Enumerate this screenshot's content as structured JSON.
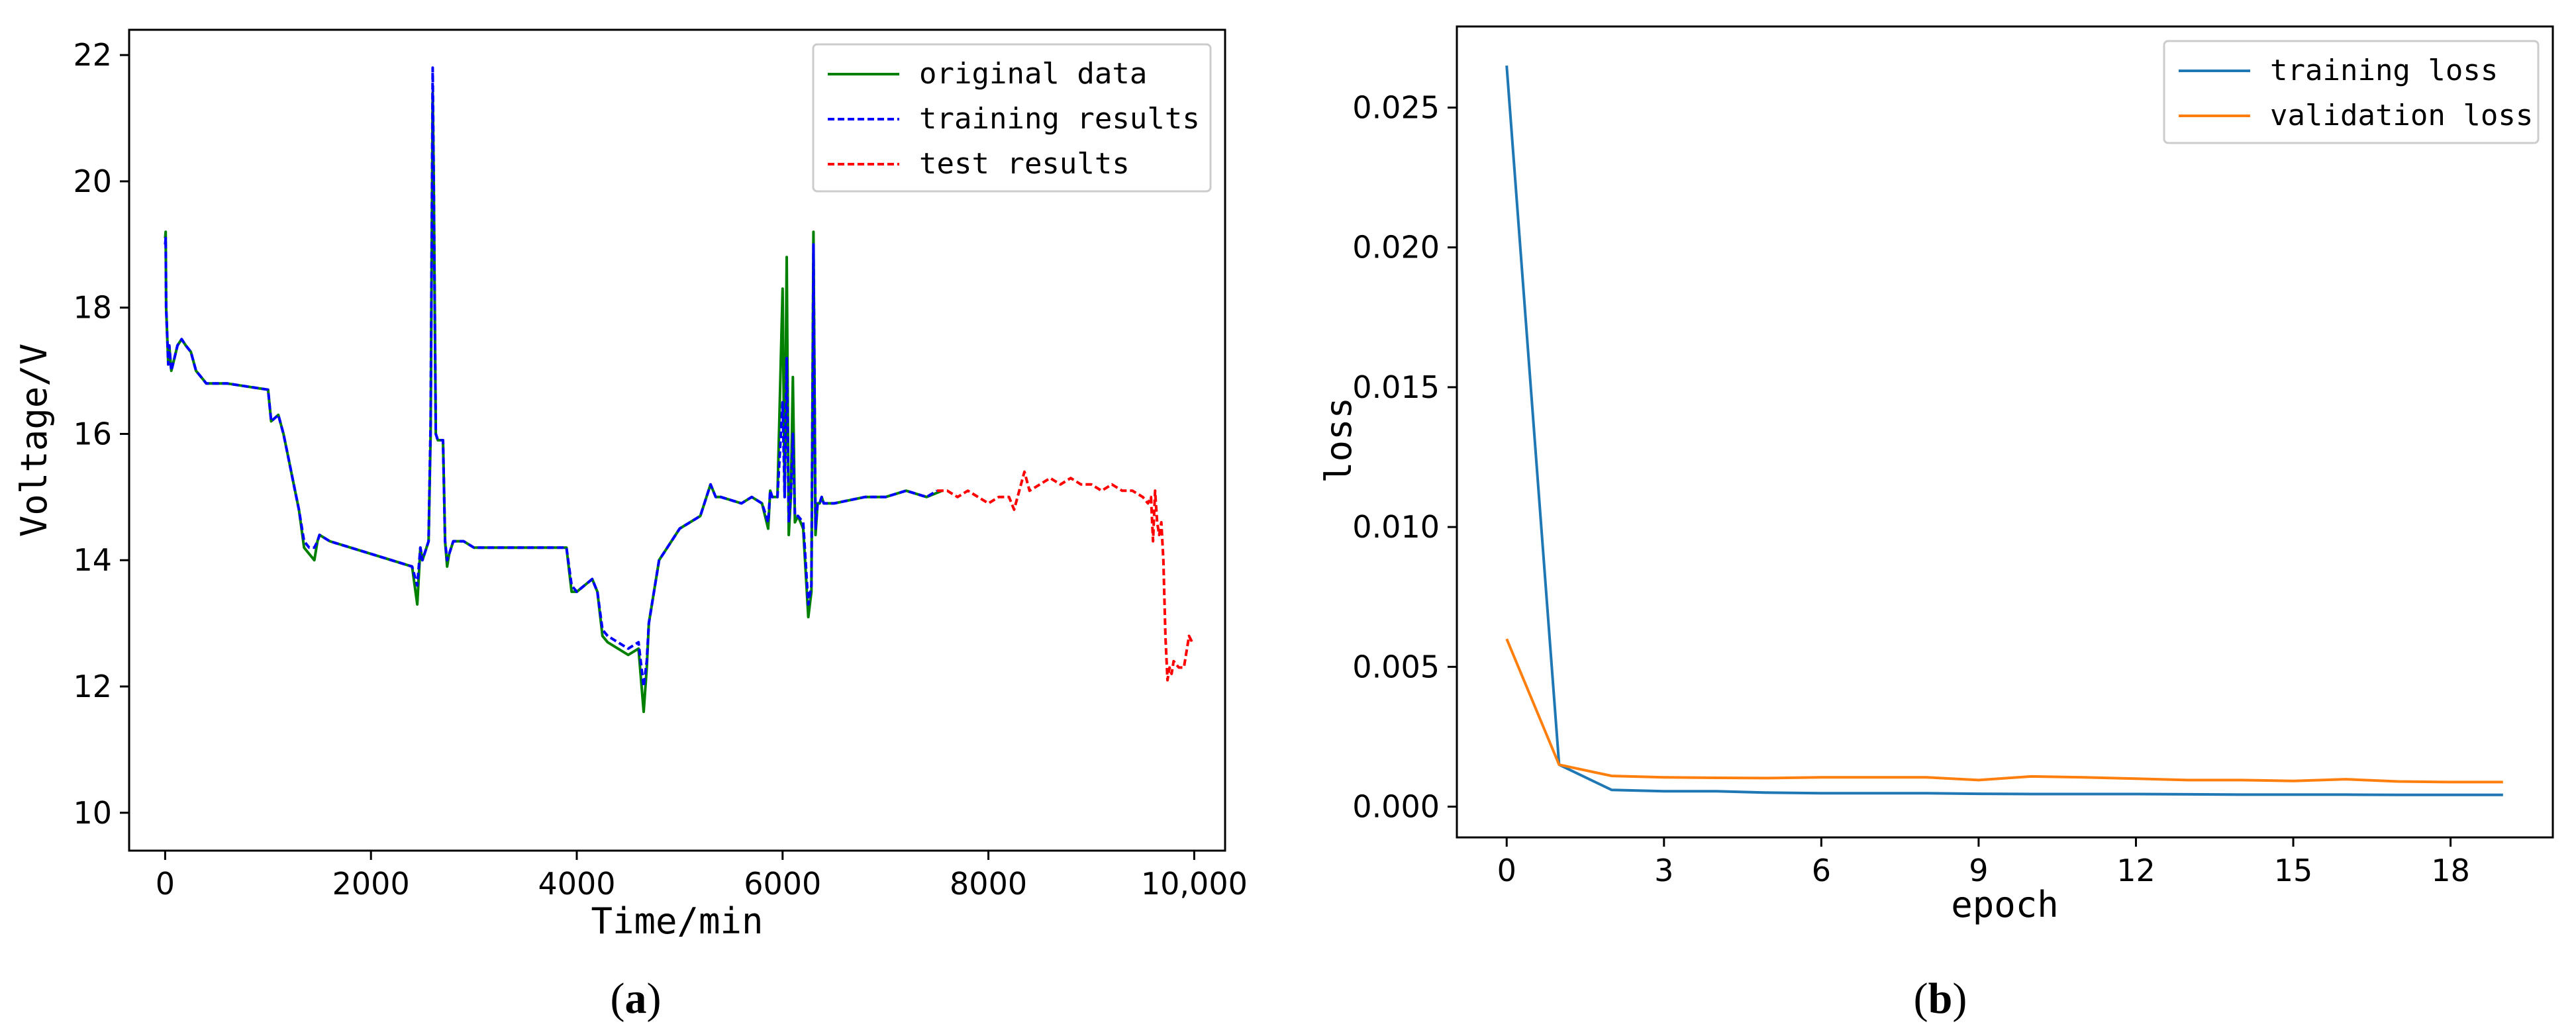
{
  "chart_data": [
    {
      "type": "line",
      "caption_letter": "a",
      "xlabel": "Time/min",
      "ylabel": "Voltage/V",
      "xlim": [
        -350,
        10300
      ],
      "ylim": [
        9.4,
        22.4
      ],
      "xticks": [
        0,
        2000,
        4000,
        6000,
        8000,
        10000
      ],
      "xtick_labels": [
        "0",
        "2000",
        "4000",
        "6000",
        "8000",
        "10,000"
      ],
      "yticks": [
        10,
        12,
        14,
        16,
        18,
        20,
        22
      ],
      "ytick_labels": [
        "10",
        "12",
        "14",
        "16",
        "18",
        "20",
        "22"
      ],
      "legend_position": "top-right",
      "series": [
        {
          "name": "original data",
          "color": "#008000",
          "style": "solid",
          "x": [
            0,
            5,
            10,
            30,
            40,
            60,
            90,
            120,
            160,
            200,
            250,
            300,
            350,
            400,
            600,
            1000,
            1030,
            1100,
            1150,
            1200,
            1250,
            1300,
            1350,
            1400,
            1450,
            1480,
            1500,
            1600,
            2000,
            2400,
            2450,
            2480,
            2500,
            2560,
            2580,
            2600,
            2610,
            2630,
            2650,
            2700,
            2720,
            2740,
            2760,
            2780,
            2800,
            2900,
            3000,
            3500,
            3900,
            3950,
            4000,
            4150,
            4200,
            4250,
            4300,
            4500,
            4600,
            4650,
            4680,
            4700,
            4800,
            5000,
            5200,
            5300,
            5350,
            5400,
            5600,
            5700,
            5800,
            5860,
            5880,
            5900,
            5950,
            6000,
            6020,
            6040,
            6060,
            6080,
            6100,
            6120,
            6150,
            6200,
            6250,
            6280,
            6300,
            6320,
            6340,
            6360,
            6380,
            6400,
            6500,
            6800,
            7000,
            7200,
            7400,
            7550
          ],
          "y": [
            19.1,
            19.2,
            18.0,
            17.1,
            17.4,
            17.0,
            17.2,
            17.4,
            17.5,
            17.4,
            17.3,
            17.0,
            16.9,
            16.8,
            16.8,
            16.7,
            16.2,
            16.3,
            16.0,
            15.6,
            15.2,
            14.8,
            14.2,
            14.1,
            14.0,
            14.3,
            14.4,
            14.3,
            14.1,
            13.9,
            13.3,
            14.2,
            14.0,
            14.3,
            16.0,
            21.4,
            20.0,
            16.0,
            15.9,
            15.9,
            14.3,
            13.9,
            14.1,
            14.2,
            14.3,
            14.3,
            14.2,
            14.2,
            14.2,
            13.5,
            13.5,
            13.7,
            13.5,
            12.8,
            12.7,
            12.5,
            12.6,
            11.6,
            12.3,
            13.0,
            14.0,
            14.5,
            14.7,
            15.2,
            15.0,
            15.0,
            14.9,
            15.0,
            14.9,
            14.5,
            15.1,
            15.0,
            15.0,
            18.3,
            15.0,
            18.8,
            14.4,
            15.0,
            16.9,
            14.6,
            14.7,
            14.5,
            13.1,
            13.5,
            19.2,
            14.4,
            14.9,
            14.9,
            15.0,
            14.9,
            14.9,
            15.0,
            15.0,
            15.1,
            15.0,
            15.1
          ]
        },
        {
          "name": "training results",
          "color": "#0000ff",
          "style": "dashed",
          "x": [
            0,
            5,
            10,
            30,
            40,
            60,
            90,
            120,
            160,
            200,
            250,
            300,
            350,
            400,
            600,
            1000,
            1030,
            1100,
            1150,
            1200,
            1250,
            1300,
            1350,
            1400,
            1450,
            1480,
            1500,
            1600,
            2000,
            2400,
            2450,
            2480,
            2500,
            2560,
            2580,
            2600,
            2610,
            2630,
            2650,
            2700,
            2720,
            2740,
            2760,
            2780,
            2800,
            2900,
            3000,
            3500,
            3900,
            3950,
            4000,
            4150,
            4200,
            4250,
            4300,
            4500,
            4600,
            4650,
            4680,
            4700,
            4800,
            5000,
            5200,
            5300,
            5350,
            5400,
            5600,
            5700,
            5800,
            5860,
            5880,
            5900,
            5950,
            6000,
            6020,
            6040,
            6060,
            6080,
            6100,
            6120,
            6150,
            6200,
            6250,
            6280,
            6300,
            6320,
            6340,
            6360,
            6380,
            6400,
            6500,
            6800,
            7000,
            7200,
            7400,
            7500
          ],
          "y": [
            19.0,
            19.1,
            18.0,
            17.1,
            17.4,
            17.0,
            17.2,
            17.4,
            17.5,
            17.4,
            17.3,
            17.0,
            16.9,
            16.8,
            16.8,
            16.7,
            16.2,
            16.3,
            16.0,
            15.6,
            15.2,
            14.8,
            14.3,
            14.2,
            14.2,
            14.3,
            14.4,
            14.3,
            14.1,
            13.9,
            13.6,
            14.2,
            14.0,
            14.3,
            16.2,
            21.8,
            20.0,
            16.0,
            15.9,
            15.9,
            14.3,
            14.0,
            14.1,
            14.2,
            14.3,
            14.3,
            14.2,
            14.2,
            14.2,
            13.6,
            13.5,
            13.7,
            13.5,
            12.9,
            12.8,
            12.6,
            12.7,
            12.0,
            12.4,
            13.0,
            14.0,
            14.5,
            14.7,
            15.2,
            15.0,
            15.0,
            14.9,
            15.0,
            14.9,
            14.6,
            15.1,
            15.0,
            15.0,
            16.5,
            15.0,
            17.2,
            14.6,
            15.0,
            16.0,
            14.7,
            14.7,
            14.6,
            13.3,
            13.6,
            19.0,
            14.5,
            14.9,
            14.9,
            15.0,
            14.9,
            14.9,
            15.0,
            15.0,
            15.1,
            15.0,
            15.1
          ]
        },
        {
          "name": "test results",
          "color": "#ff0000",
          "style": "dashed",
          "x": [
            7500,
            7600,
            7700,
            7800,
            7900,
            8000,
            8100,
            8200,
            8250,
            8300,
            8350,
            8400,
            8500,
            8600,
            8700,
            8800,
            8900,
            9000,
            9100,
            9200,
            9300,
            9400,
            9500,
            9550,
            9580,
            9600,
            9620,
            9640,
            9660,
            9680,
            9700,
            9720,
            9740,
            9760,
            9780,
            9800,
            9850,
            9900,
            9950,
            9980
          ],
          "y": [
            15.1,
            15.1,
            15.0,
            15.1,
            15.0,
            14.9,
            15.0,
            15.0,
            14.8,
            15.1,
            15.4,
            15.1,
            15.2,
            15.3,
            15.2,
            15.3,
            15.2,
            15.2,
            15.1,
            15.2,
            15.1,
            15.1,
            15.0,
            14.9,
            15.0,
            14.3,
            15.1,
            14.6,
            14.4,
            14.6,
            14.0,
            12.8,
            12.1,
            12.3,
            12.2,
            12.4,
            12.3,
            12.3,
            12.8,
            12.7
          ]
        }
      ]
    },
    {
      "type": "line",
      "caption_letter": "b",
      "xlabel": "epoch",
      "ylabel": "loss",
      "xlim": [
        -0.95,
        19.95
      ],
      "ylim": [
        -0.0011,
        0.0279
      ],
      "xticks": [
        0,
        3,
        6,
        9,
        12,
        15,
        18
      ],
      "xtick_labels": [
        "0",
        "3",
        "6",
        "9",
        "12",
        "15",
        "18"
      ],
      "yticks": [
        0.0,
        0.005,
        0.01,
        0.015,
        0.02,
        0.025
      ],
      "ytick_labels": [
        "0.000",
        "0.005",
        "0.010",
        "0.015",
        "0.020",
        "0.025"
      ],
      "legend_position": "top-right",
      "series": [
        {
          "name": "training loss",
          "color": "#1f77b4",
          "style": "solid",
          "x": [
            0,
            1,
            2,
            3,
            4,
            5,
            6,
            7,
            8,
            9,
            10,
            11,
            12,
            13,
            14,
            15,
            16,
            17,
            18,
            19
          ],
          "y": [
            0.0265,
            0.0015,
            0.0006,
            0.00055,
            0.00055,
            0.0005,
            0.00048,
            0.00048,
            0.00048,
            0.00046,
            0.00045,
            0.00045,
            0.00045,
            0.00044,
            0.00043,
            0.00043,
            0.00043,
            0.00042,
            0.00042,
            0.00042
          ]
        },
        {
          "name": "validation loss",
          "color": "#ff7f0e",
          "style": "solid",
          "x": [
            0,
            1,
            2,
            3,
            4,
            5,
            6,
            7,
            8,
            9,
            10,
            11,
            12,
            13,
            14,
            15,
            16,
            17,
            18,
            19
          ],
          "y": [
            0.006,
            0.0015,
            0.0011,
            0.00105,
            0.00103,
            0.00102,
            0.00105,
            0.00105,
            0.00105,
            0.00095,
            0.00108,
            0.00105,
            0.001,
            0.00095,
            0.00095,
            0.00092,
            0.00098,
            0.0009,
            0.00088,
            0.00088
          ]
        }
      ]
    }
  ]
}
